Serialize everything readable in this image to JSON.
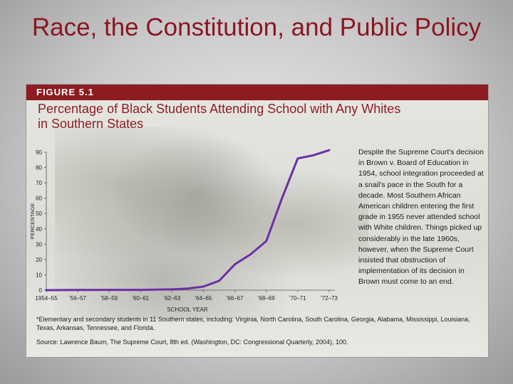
{
  "slide": {
    "title": "Race, the Constitution, and Public Policy"
  },
  "figure": {
    "label": "FIGURE 5.1",
    "title": "Percentage of Black Students Attending School with Any Whites in Southern States",
    "callout": "Despite the Supreme Court's decision in Brown v. Board of Education in 1954, school integration proceeded at a snail's pace in the South for a decade. Most Southern African American children entering the first grade in 1955 never attended school with White children. Things picked up considerably in the late 1960s, however, when the Supreme Court insisted that obstruction of implementation of its decision in Brown must come to an end.",
    "footnote": "*Elementary and secondary students in 11 Southern states, including: Virginia, North Carolina, South Carolina, Georgia, Alabama, Mississippi, Louisiana, Texas, Arkansas, Tennessee, and Florida.",
    "source": "Source: Lawrence Baum, The Supreme Court, 8th ed. (Washington, DC: Congressional Quarterly, 2004), 100."
  },
  "chart_data": {
    "type": "line",
    "xlabel": "SCHOOL YEAR",
    "ylabel": "PERCENTAGE",
    "ylim": [
      0,
      90
    ],
    "yticks": [
      0,
      10,
      20,
      30,
      40,
      50,
      60,
      70,
      80,
      90
    ],
    "xtick_labels": [
      "1954–55",
      "'56–57",
      "'58–59",
      "'60–61",
      "'62–63",
      "'64–65",
      "'66–67",
      "'68–69",
      "'70–71",
      "'72–73"
    ],
    "grid": false,
    "line_color": "#6b2fa6",
    "series": [
      {
        "x": [
          "1954–55",
          "'56–57",
          "'58–59",
          "'60–61",
          "'62–63",
          "'63–64",
          "'64–65",
          "'65–66",
          "'66–67",
          "'67–68",
          "'68–69",
          "'69–70",
          "'70–71",
          "'71–72",
          "'72–73"
        ],
        "values": [
          0.001,
          0.1,
          0.2,
          0.2,
          0.5,
          1.0,
          2.3,
          6.1,
          16.9,
          23.4,
          32.0,
          60.0,
          85.9,
          88.0,
          91.3
        ]
      }
    ]
  }
}
